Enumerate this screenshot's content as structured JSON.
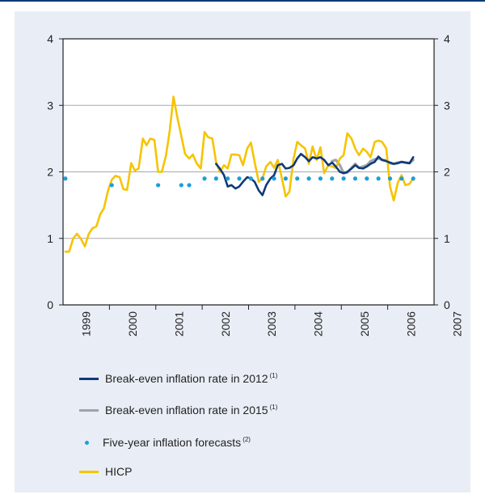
{
  "chart_data": {
    "type": "line",
    "x_ticks": [
      "1999",
      "2000",
      "2001",
      "2002",
      "2003",
      "2004",
      "2005",
      "2006",
      "2007"
    ],
    "ylim": [
      0,
      4
    ],
    "y_ticks": [
      0,
      1,
      2,
      3,
      4
    ],
    "grid": "horizontal",
    "legend_position": "bottom",
    "colors": {
      "hicp": "#f6c400",
      "bei2012": "#0f3a78",
      "bei2015": "#a0a4a8",
      "forecast": "#1e9ed8",
      "grid": "#a8a8a8",
      "axis": "#222222"
    },
    "series": [
      {
        "name": "Break-even inflation rate in 2012",
        "note": "(1)",
        "key": "bei2012",
        "points": [
          [
            2002.25,
            2.12
          ],
          [
            2002.33,
            2.05
          ],
          [
            2002.42,
            1.95
          ],
          [
            2002.5,
            1.78
          ],
          [
            2002.58,
            1.8
          ],
          [
            2002.67,
            1.75
          ],
          [
            2002.75,
            1.78
          ],
          [
            2002.83,
            1.85
          ],
          [
            2002.92,
            1.92
          ],
          [
            2003.0,
            1.9
          ],
          [
            2003.08,
            1.85
          ],
          [
            2003.17,
            1.72
          ],
          [
            2003.25,
            1.65
          ],
          [
            2003.33,
            1.8
          ],
          [
            2003.42,
            1.9
          ],
          [
            2003.5,
            1.95
          ],
          [
            2003.58,
            2.1
          ],
          [
            2003.67,
            2.12
          ],
          [
            2003.75,
            2.05
          ],
          [
            2003.83,
            2.06
          ],
          [
            2003.92,
            2.1
          ],
          [
            2004.0,
            2.2
          ],
          [
            2004.08,
            2.27
          ],
          [
            2004.17,
            2.22
          ],
          [
            2004.25,
            2.16
          ],
          [
            2004.33,
            2.22
          ],
          [
            2004.42,
            2.2
          ],
          [
            2004.5,
            2.22
          ],
          [
            2004.58,
            2.18
          ],
          [
            2004.67,
            2.1
          ],
          [
            2004.75,
            2.14
          ],
          [
            2004.83,
            2.08
          ],
          [
            2004.92,
            2.0
          ],
          [
            2005.0,
            1.98
          ],
          [
            2005.08,
            2.0
          ],
          [
            2005.17,
            2.05
          ],
          [
            2005.25,
            2.1
          ],
          [
            2005.33,
            2.06
          ],
          [
            2005.42,
            2.05
          ],
          [
            2005.5,
            2.08
          ],
          [
            2005.58,
            2.12
          ],
          [
            2005.67,
            2.15
          ],
          [
            2005.75,
            2.23
          ],
          [
            2005.83,
            2.18
          ],
          [
            2005.92,
            2.16
          ],
          [
            2006.0,
            2.14
          ],
          [
            2006.08,
            2.12
          ],
          [
            2006.17,
            2.13
          ],
          [
            2006.25,
            2.15
          ],
          [
            2006.33,
            2.14
          ],
          [
            2006.42,
            2.13
          ],
          [
            2006.5,
            2.22
          ]
        ]
      },
      {
        "name": "Break-even inflation rate in 2015",
        "note": "(1)",
        "key": "bei2015",
        "points": [
          [
            2004.75,
            2.16
          ],
          [
            2004.83,
            2.18
          ],
          [
            2004.92,
            2.1
          ],
          [
            2005.0,
            1.98
          ],
          [
            2005.08,
            1.99
          ],
          [
            2005.17,
            2.06
          ],
          [
            2005.25,
            2.12
          ],
          [
            2005.33,
            2.06
          ],
          [
            2005.42,
            2.08
          ],
          [
            2005.5,
            2.1
          ],
          [
            2005.58,
            2.16
          ],
          [
            2005.67,
            2.19
          ],
          [
            2005.75,
            2.2
          ],
          [
            2005.83,
            2.18
          ],
          [
            2005.92,
            2.17
          ],
          [
            2006.0,
            2.13
          ],
          [
            2006.08,
            2.12
          ],
          [
            2006.17,
            2.14
          ],
          [
            2006.25,
            2.15
          ],
          [
            2006.33,
            2.14
          ],
          [
            2006.42,
            2.13
          ],
          [
            2006.5,
            2.18
          ]
        ]
      },
      {
        "name": "Five-year inflation forecasts",
        "note": "(2)",
        "key": "forecast",
        "points": [
          [
            1999.0,
            1.9
          ],
          [
            2000.0,
            1.8
          ],
          [
            2001.0,
            1.8
          ],
          [
            2001.5,
            1.8
          ],
          [
            2001.67,
            1.8
          ],
          [
            2002.0,
            1.9
          ],
          [
            2002.25,
            1.9
          ],
          [
            2002.5,
            1.9
          ],
          [
            2002.75,
            1.9
          ],
          [
            2003.0,
            1.9
          ],
          [
            2003.25,
            1.9
          ],
          [
            2003.5,
            1.9
          ],
          [
            2003.75,
            1.9
          ],
          [
            2004.0,
            1.9
          ],
          [
            2004.25,
            1.9
          ],
          [
            2004.5,
            1.9
          ],
          [
            2004.75,
            1.9
          ],
          [
            2005.0,
            1.9
          ],
          [
            2005.25,
            1.9
          ],
          [
            2005.5,
            1.9
          ],
          [
            2005.75,
            1.9
          ],
          [
            2006.0,
            1.9
          ],
          [
            2006.25,
            1.9
          ],
          [
            2006.5,
            1.9
          ]
        ]
      },
      {
        "name": "HICP",
        "note": "",
        "key": "hicp",
        "points": [
          [
            1999.0,
            0.8
          ],
          [
            1999.08,
            0.8
          ],
          [
            1999.17,
            1.0
          ],
          [
            1999.25,
            1.07
          ],
          [
            1999.33,
            1.0
          ],
          [
            1999.42,
            0.88
          ],
          [
            1999.5,
            1.06
          ],
          [
            1999.58,
            1.15
          ],
          [
            1999.67,
            1.18
          ],
          [
            1999.75,
            1.36
          ],
          [
            1999.83,
            1.45
          ],
          [
            1999.92,
            1.72
          ],
          [
            2000.0,
            1.88
          ],
          [
            2000.08,
            1.94
          ],
          [
            2000.17,
            1.92
          ],
          [
            2000.25,
            1.74
          ],
          [
            2000.33,
            1.73
          ],
          [
            2000.42,
            2.13
          ],
          [
            2000.5,
            2.02
          ],
          [
            2000.58,
            2.05
          ],
          [
            2000.67,
            2.5
          ],
          [
            2000.75,
            2.4
          ],
          [
            2000.83,
            2.5
          ],
          [
            2000.92,
            2.48
          ],
          [
            2001.0,
            2.0
          ],
          [
            2001.08,
            2.0
          ],
          [
            2001.17,
            2.25
          ],
          [
            2001.25,
            2.62
          ],
          [
            2001.33,
            3.13
          ],
          [
            2001.42,
            2.8
          ],
          [
            2001.5,
            2.54
          ],
          [
            2001.58,
            2.27
          ],
          [
            2001.67,
            2.2
          ],
          [
            2001.75,
            2.26
          ],
          [
            2001.83,
            2.13
          ],
          [
            2001.92,
            2.05
          ],
          [
            2002.0,
            2.6
          ],
          [
            2002.08,
            2.52
          ],
          [
            2002.17,
            2.5
          ],
          [
            2002.25,
            2.15
          ],
          [
            2002.33,
            2.0
          ],
          [
            2002.42,
            2.1
          ],
          [
            2002.5,
            2.05
          ],
          [
            2002.58,
            2.26
          ],
          [
            2002.67,
            2.26
          ],
          [
            2002.75,
            2.25
          ],
          [
            2002.83,
            2.1
          ],
          [
            2002.92,
            2.35
          ],
          [
            2003.0,
            2.44
          ],
          [
            2003.08,
            2.15
          ],
          [
            2003.17,
            1.85
          ],
          [
            2003.25,
            1.9
          ],
          [
            2003.33,
            2.08
          ],
          [
            2003.42,
            2.15
          ],
          [
            2003.5,
            2.06
          ],
          [
            2003.58,
            2.18
          ],
          [
            2003.67,
            1.9
          ],
          [
            2003.75,
            1.63
          ],
          [
            2003.83,
            1.7
          ],
          [
            2003.92,
            2.2
          ],
          [
            2004.0,
            2.45
          ],
          [
            2004.08,
            2.4
          ],
          [
            2004.17,
            2.35
          ],
          [
            2004.25,
            2.12
          ],
          [
            2004.33,
            2.38
          ],
          [
            2004.42,
            2.18
          ],
          [
            2004.5,
            2.37
          ],
          [
            2004.58,
            1.98
          ],
          [
            2004.67,
            2.1
          ],
          [
            2004.75,
            2.08
          ],
          [
            2004.83,
            2.06
          ],
          [
            2004.92,
            2.2
          ],
          [
            2005.0,
            2.25
          ],
          [
            2005.08,
            2.58
          ],
          [
            2005.17,
            2.5
          ],
          [
            2005.25,
            2.35
          ],
          [
            2005.33,
            2.25
          ],
          [
            2005.42,
            2.35
          ],
          [
            2005.5,
            2.3
          ],
          [
            2005.58,
            2.22
          ],
          [
            2005.67,
            2.45
          ],
          [
            2005.75,
            2.47
          ],
          [
            2005.83,
            2.45
          ],
          [
            2005.92,
            2.35
          ],
          [
            2006.0,
            1.78
          ],
          [
            2006.08,
            1.57
          ],
          [
            2006.17,
            1.84
          ],
          [
            2006.25,
            1.95
          ],
          [
            2006.33,
            1.8
          ],
          [
            2006.42,
            1.82
          ],
          [
            2006.5,
            1.9
          ]
        ]
      }
    ],
    "legend": [
      {
        "label": "Break-even inflation rate in 2012",
        "note": "(1)",
        "key": "bei2012",
        "marker": "line"
      },
      {
        "label": "Break-even inflation rate in 2015",
        "note": "(1)",
        "key": "bei2015",
        "marker": "line"
      },
      {
        "label": "Five-year inflation forecasts",
        "note": "(2)",
        "key": "forecast",
        "marker": "dot"
      },
      {
        "label": "HICP",
        "note": "",
        "key": "hicp",
        "marker": "line"
      }
    ]
  }
}
